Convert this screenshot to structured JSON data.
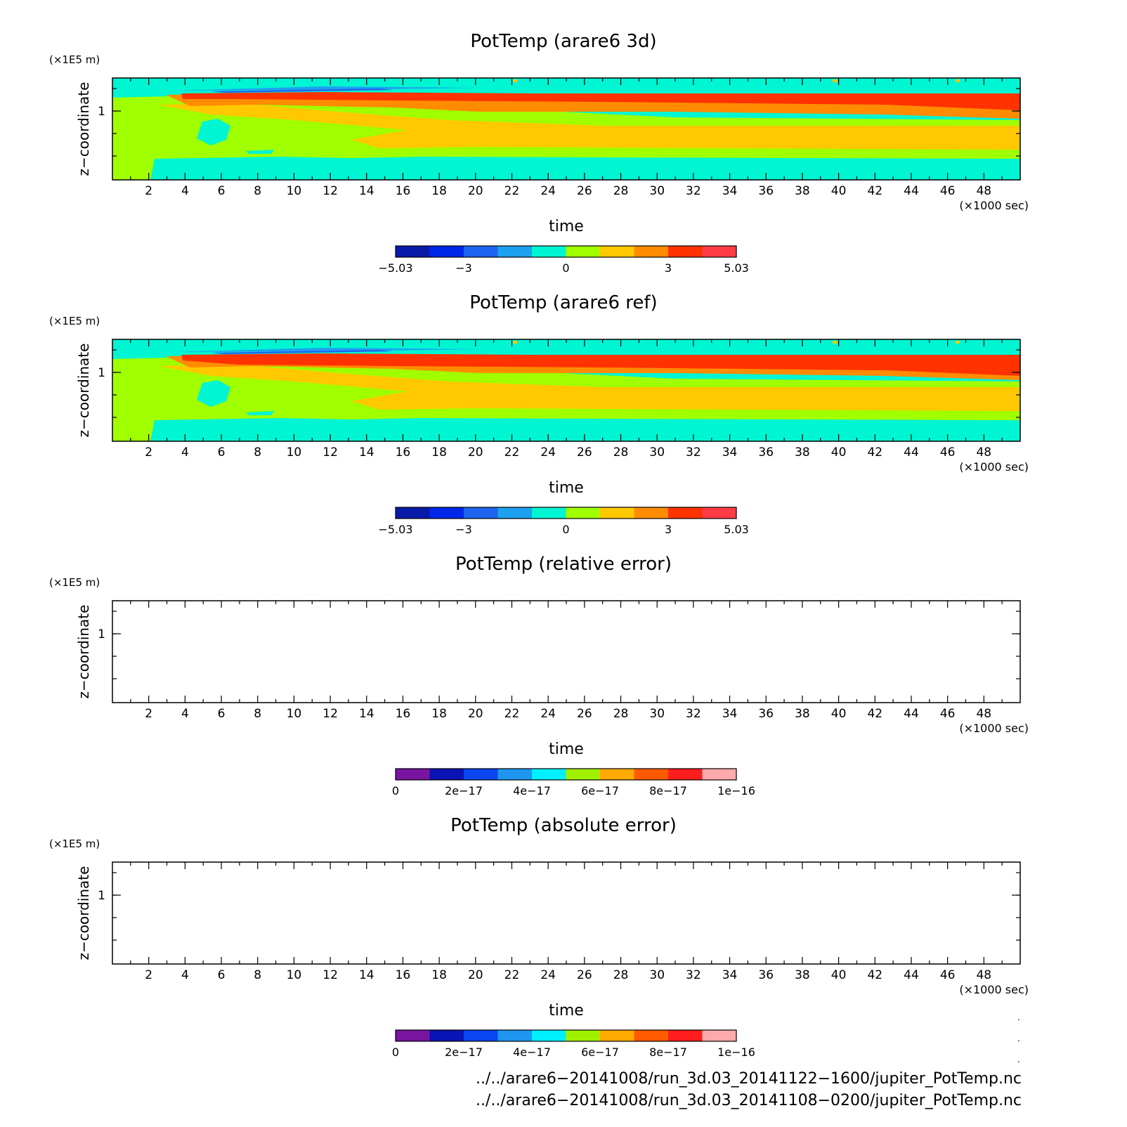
{
  "chart_data": [
    {
      "type": "heatmap",
      "title": "PotTemp (arare6 3d)",
      "xlabel": "time",
      "x_unit": "(×1000 sec)",
      "ylabel": "z−coordinate",
      "y_unit": "(×1E5 m)",
      "x_ticks": [
        "2",
        "4",
        "6",
        "8",
        "10",
        "12",
        "14",
        "16",
        "18",
        "20",
        "22",
        "24",
        "26",
        "28",
        "30",
        "32",
        "34",
        "36",
        "38",
        "40",
        "42",
        "44",
        "46",
        "48"
      ],
      "y_ticks": [
        "1"
      ],
      "xlim": [
        0,
        50
      ],
      "colorbar": {
        "range": [
          -5.03,
          5.03
        ],
        "labels": [
          "−5.03",
          "−3",
          "0",
          "3",
          "5.03"
        ],
        "colors": [
          "#0a1aa8",
          "#0026e8",
          "#1e64f0",
          "#1ea0f0",
          "#00f5d2",
          "#a0ff00",
          "#ffc800",
          "#ff8c00",
          "#ff3200",
          "#ff3c46"
        ]
      }
    },
    {
      "type": "heatmap",
      "title": "PotTemp (arare6 ref)",
      "xlabel": "time",
      "x_unit": "(×1000 sec)",
      "ylabel": "z−coordinate",
      "y_unit": "(×1E5 m)",
      "x_ticks": [
        "2",
        "4",
        "6",
        "8",
        "10",
        "12",
        "14",
        "16",
        "18",
        "20",
        "22",
        "24",
        "26",
        "28",
        "30",
        "32",
        "34",
        "36",
        "38",
        "40",
        "42",
        "44",
        "46",
        "48"
      ],
      "y_ticks": [
        "1"
      ],
      "xlim": [
        0,
        50
      ],
      "colorbar": {
        "range": [
          -5.03,
          5.03
        ],
        "labels": [
          "−5.03",
          "−3",
          "0",
          "3",
          "5.03"
        ],
        "colors": [
          "#0a1aa8",
          "#0026e8",
          "#1e64f0",
          "#1ea0f0",
          "#00f5d2",
          "#a0ff00",
          "#ffc800",
          "#ff8c00",
          "#ff3200",
          "#ff3c46"
        ]
      }
    },
    {
      "type": "heatmap",
      "title": "PotTemp (relative error)",
      "xlabel": "time",
      "x_unit": "(×1000 sec)",
      "ylabel": "z−coordinate",
      "y_unit": "(×1E5 m)",
      "x_ticks": [
        "2",
        "4",
        "6",
        "8",
        "10",
        "12",
        "14",
        "16",
        "18",
        "20",
        "22",
        "24",
        "26",
        "28",
        "30",
        "32",
        "34",
        "36",
        "38",
        "40",
        "42",
        "44",
        "46",
        "48"
      ],
      "y_ticks": [
        "1"
      ],
      "xlim": [
        0,
        50
      ],
      "colorbar": {
        "range": [
          0,
          1e-16
        ],
        "labels": [
          "0",
          "2e−17",
          "4e−17",
          "6e−17",
          "8e−17",
          "1e−16"
        ],
        "colors": [
          "#7814a0",
          "#0a14b4",
          "#0a46f0",
          "#1e96f0",
          "#00f0ff",
          "#a0f000",
          "#ffaa00",
          "#ff5a00",
          "#ff1e1e",
          "#ffaaaa"
        ]
      }
    },
    {
      "type": "heatmap",
      "title": "PotTemp (absolute error)",
      "xlabel": "time",
      "x_unit": "(×1000 sec)",
      "ylabel": "z−coordinate",
      "y_unit": "(×1E5 m)",
      "x_ticks": [
        "2",
        "4",
        "6",
        "8",
        "10",
        "12",
        "14",
        "16",
        "18",
        "20",
        "22",
        "24",
        "26",
        "28",
        "30",
        "32",
        "34",
        "36",
        "38",
        "40",
        "42",
        "44",
        "46",
        "48"
      ],
      "y_ticks": [
        "1"
      ],
      "xlim": [
        0,
        50
      ],
      "colorbar": {
        "range": [
          0,
          1e-16
        ],
        "labels": [
          "0",
          "2e−17",
          "4e−17",
          "6e−17",
          "8e−17",
          "1e−16"
        ],
        "colors": [
          "#7814a0",
          "#0a14b4",
          "#0a46f0",
          "#1e96f0",
          "#00f0ff",
          "#a0f000",
          "#ffaa00",
          "#ff5a00",
          "#ff1e1e",
          "#ffaaaa"
        ]
      }
    }
  ],
  "footer": {
    "line1": "../../arare6−20141008/run_3d.03_20141122−1600/jupiter_PotTemp.nc",
    "line2": "../../arare6−20141008/run_3d.03_20141108−0200/jupiter_PotTemp.nc"
  }
}
